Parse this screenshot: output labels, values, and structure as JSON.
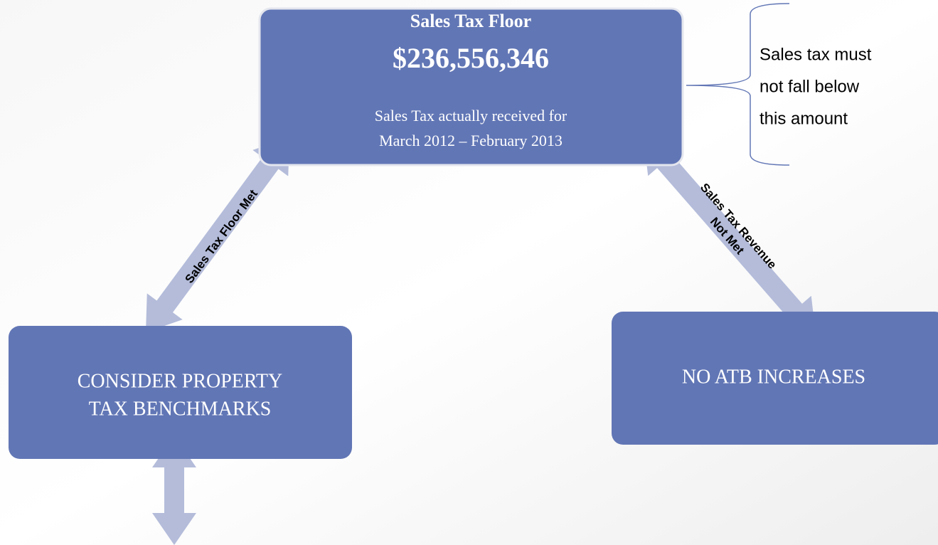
{
  "nodes": [
    {
      "title": "Sales Tax Floor",
      "amount": "$236,556,346",
      "lines": [
        "Sales Tax actually received for",
        "March 2012 – February 2013"
      ]
    },
    {
      "lines": [
        "CONSIDER PROPERTY",
        "TAX BENCHMARKS"
      ]
    },
    {
      "lines": [
        "NO ATB INCREASES"
      ]
    }
  ],
  "note": {
    "lines": [
      "Sales tax must",
      "not fall below",
      "this amount"
    ]
  },
  "edges": [
    {
      "lines": [
        "Sales Tax Floor Met"
      ]
    },
    {
      "lines": [
        "Sales Tax Revenue",
        "Not Met"
      ]
    }
  ]
}
